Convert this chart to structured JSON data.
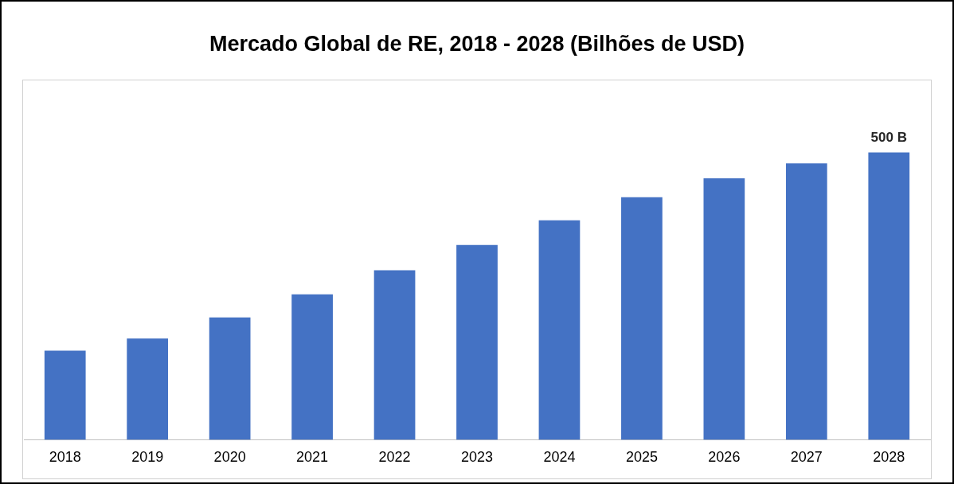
{
  "chart_data": {
    "type": "bar",
    "title": "Mercado Global de RE, 2018 - 2028 (Bilhões de USD)",
    "categories": [
      "2018",
      "2019",
      "2020",
      "2021",
      "2022",
      "2023",
      "2024",
      "2025",
      "2026",
      "2027",
      "2028"
    ],
    "values": [
      155,
      176,
      213,
      253,
      295,
      339,
      382,
      422,
      455,
      481,
      500
    ],
    "value_labels": [
      null,
      null,
      null,
      null,
      null,
      null,
      null,
      null,
      null,
      null,
      "500 B"
    ],
    "color": "#4472c4",
    "grid": false,
    "legend": false
  }
}
